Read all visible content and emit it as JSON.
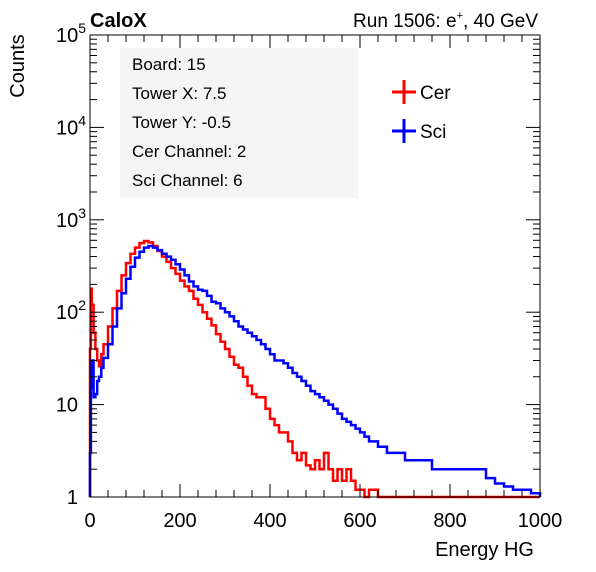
{
  "header": {
    "label": "CaloX",
    "run_prefix": "Run 1506: e",
    "run_sup": "+",
    "run_suffix": ", 40 GeV"
  },
  "info_box": {
    "board": "Board: 15",
    "tower_x": "Tower X: 7.5",
    "tower_y": "Tower Y: -0.5",
    "cer_channel": "Cer Channel: 2",
    "sci_channel": "Sci Channel: 6"
  },
  "chart_data": {
    "type": "line",
    "title": "",
    "xlabel": "Energy HG",
    "ylabel": "Counts",
    "xlim": [
      0,
      1000
    ],
    "ylim": [
      1,
      100000
    ],
    "yscale": "log",
    "x_ticks": [
      "0",
      "200",
      "400",
      "600",
      "800",
      "1000"
    ],
    "y_ticks": [
      {
        "base": "1",
        "exp": ""
      },
      {
        "base": "10",
        "exp": ""
      },
      {
        "base": "10",
        "exp": "2"
      },
      {
        "base": "10",
        "exp": "3"
      },
      {
        "base": "10",
        "exp": "4"
      },
      {
        "base": "10",
        "exp": "5"
      }
    ],
    "grid": false,
    "legend_position": "top-right",
    "series": [
      {
        "name": "Cer",
        "color": "#ff0000",
        "x": [
          0,
          2,
          4,
          8,
          12,
          16,
          20,
          25,
          30,
          40,
          50,
          60,
          70,
          80,
          90,
          100,
          110,
          120,
          130,
          140,
          150,
          160,
          170,
          180,
          190,
          200,
          210,
          220,
          230,
          240,
          250,
          260,
          270,
          280,
          290,
          300,
          310,
          320,
          330,
          340,
          350,
          360,
          370,
          380,
          390,
          400,
          410,
          420,
          430,
          440,
          450,
          460,
          470,
          480,
          490,
          500,
          510,
          520,
          530,
          540,
          550,
          560,
          570,
          580,
          590,
          600,
          610,
          620,
          640,
          660,
          700
        ],
        "y": [
          40,
          180,
          120,
          60,
          40,
          30,
          26,
          35,
          45,
          70,
          110,
          170,
          250,
          340,
          430,
          500,
          560,
          590,
          570,
          520,
          460,
          400,
          350,
          300,
          260,
          220,
          190,
          170,
          140,
          120,
          100,
          85,
          72,
          58,
          48,
          40,
          33,
          27,
          25,
          20,
          16,
          13,
          12,
          12,
          9,
          7,
          6,
          5,
          5,
          4,
          3,
          2.5,
          3,
          2.2,
          2,
          2.5,
          2,
          3,
          2,
          1.5,
          2,
          1.5,
          2,
          1.5,
          1.2,
          1.2,
          1,
          1.2,
          1,
          1,
          1
        ]
      },
      {
        "name": "Sci",
        "color": "#0000ff",
        "x": [
          0,
          2,
          4,
          8,
          12,
          16,
          20,
          25,
          30,
          40,
          50,
          60,
          70,
          80,
          90,
          100,
          110,
          120,
          130,
          140,
          150,
          160,
          170,
          180,
          190,
          200,
          210,
          220,
          230,
          240,
          250,
          260,
          270,
          280,
          290,
          300,
          310,
          320,
          330,
          340,
          350,
          360,
          370,
          380,
          390,
          400,
          410,
          420,
          430,
          440,
          450,
          460,
          470,
          480,
          490,
          500,
          510,
          520,
          530,
          540,
          550,
          560,
          570,
          580,
          590,
          600,
          610,
          620,
          640,
          660,
          680,
          700,
          720,
          740,
          760,
          780,
          800,
          820,
          840,
          860,
          880,
          900,
          920,
          940,
          960,
          980,
          1000
        ],
        "y": [
          3,
          15,
          30,
          12,
          13,
          18,
          20,
          25,
          32,
          45,
          70,
          110,
          160,
          230,
          310,
          390,
          450,
          500,
          520,
          500,
          470,
          430,
          400,
          370,
          330,
          290,
          250,
          215,
          190,
          175,
          170,
          150,
          130,
          125,
          110,
          100,
          90,
          80,
          70,
          65,
          60,
          55,
          50,
          45,
          40,
          35,
          30,
          30,
          28,
          25,
          22,
          20,
          18,
          16,
          14,
          13,
          12,
          11,
          10,
          9,
          8,
          7,
          6.5,
          6,
          5.5,
          5,
          4.5,
          4,
          3.5,
          3,
          3,
          2.5,
          2.5,
          2.5,
          2,
          2,
          2,
          2,
          2,
          2,
          1.6,
          1.4,
          1.3,
          1.2,
          1.2,
          1.1,
          1
        ]
      }
    ]
  }
}
